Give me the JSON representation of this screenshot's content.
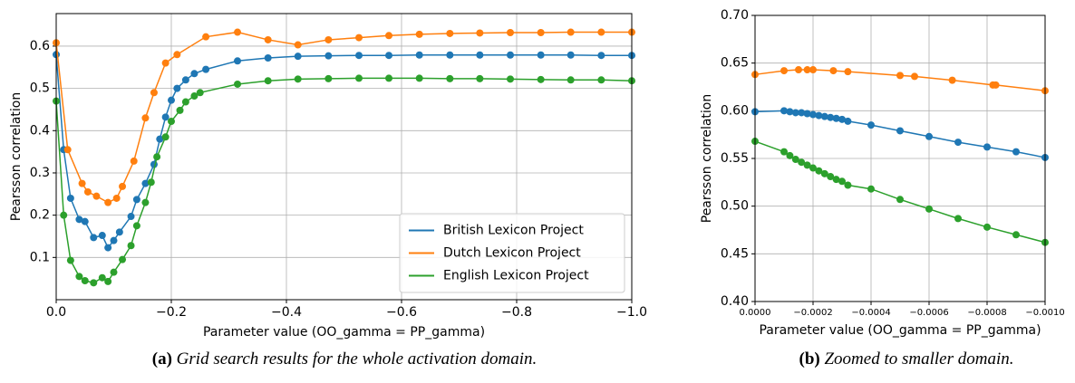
{
  "chart_data": [
    {
      "type": "line",
      "label": "(a)",
      "caption": "Grid search results for the whole activation domain.",
      "xlabel": "Parameter value (OO_gamma = PP_gamma)",
      "ylabel": "Pearsson correlation",
      "xlim": [
        0,
        -1.0
      ],
      "ylim": [
        0.0,
        0.677
      ],
      "xticks": [
        {
          "value": 0,
          "label": "0.0"
        },
        {
          "value": -0.2,
          "label": "−0.2"
        },
        {
          "value": -0.4,
          "label": "−0.4"
        },
        {
          "value": -0.6,
          "label": "−0.6"
        },
        {
          "value": -0.8,
          "label": "−0.8"
        },
        {
          "value": -1.0,
          "label": "−1.0"
        }
      ],
      "yticks": [
        0.1,
        0.2,
        0.3,
        0.4,
        0.5,
        0.6
      ],
      "grid": true,
      "legend": "lower right",
      "series": [
        {
          "name": "British Lexicon Project",
          "color": "#1f77b4",
          "x": [
            0,
            -0.013,
            -0.025,
            -0.04,
            -0.05,
            -0.065,
            -0.08,
            -0.09,
            -0.1,
            -0.11,
            -0.13,
            -0.14,
            -0.155,
            -0.17,
            -0.18,
            -0.19,
            -0.2,
            -0.21,
            -0.225,
            -0.24,
            -0.26,
            -0.315,
            -0.368,
            -0.42,
            -0.473,
            -0.526,
            -0.578,
            -0.631,
            -0.684,
            -0.736,
            -0.789,
            -0.842,
            -0.894,
            -0.947,
            -1.0
          ],
          "values": [
            0.58,
            0.355,
            0.24,
            0.19,
            0.185,
            0.147,
            0.152,
            0.123,
            0.14,
            0.16,
            0.197,
            0.237,
            0.275,
            0.32,
            0.38,
            0.432,
            0.472,
            0.5,
            0.52,
            0.535,
            0.545,
            0.565,
            0.572,
            0.576,
            0.577,
            0.578,
            0.578,
            0.579,
            0.579,
            0.579,
            0.579,
            0.579,
            0.579,
            0.578,
            0.578
          ]
        },
        {
          "name": "Dutch Lexicon Project",
          "color": "#ff7f0e",
          "x": [
            0,
            -0.02,
            -0.045,
            -0.055,
            -0.07,
            -0.09,
            -0.105,
            -0.115,
            -0.135,
            -0.155,
            -0.17,
            -0.19,
            -0.21,
            -0.26,
            -0.315,
            -0.368,
            -0.42,
            -0.473,
            -0.526,
            -0.578,
            -0.631,
            -0.684,
            -0.736,
            -0.789,
            -0.842,
            -0.894,
            -0.947,
            -1.0
          ],
          "values": [
            0.608,
            0.355,
            0.275,
            0.255,
            0.245,
            0.23,
            0.24,
            0.268,
            0.328,
            0.43,
            0.49,
            0.56,
            0.58,
            0.622,
            0.633,
            0.615,
            0.603,
            0.615,
            0.62,
            0.625,
            0.628,
            0.63,
            0.631,
            0.632,
            0.632,
            0.633,
            0.633,
            0.633
          ]
        },
        {
          "name": "English Lexicon Project",
          "color": "#2ca02c",
          "x": [
            0,
            -0.013,
            -0.025,
            -0.04,
            -0.05,
            -0.065,
            -0.08,
            -0.09,
            -0.1,
            -0.115,
            -0.13,
            -0.14,
            -0.155,
            -0.165,
            -0.175,
            -0.19,
            -0.2,
            -0.215,
            -0.225,
            -0.24,
            -0.25,
            -0.315,
            -0.368,
            -0.42,
            -0.473,
            -0.526,
            -0.578,
            -0.631,
            -0.684,
            -0.736,
            -0.789,
            -0.842,
            -0.894,
            -0.947,
            -1.0
          ],
          "values": [
            0.47,
            0.2,
            0.093,
            0.055,
            0.045,
            0.04,
            0.052,
            0.043,
            0.065,
            0.095,
            0.128,
            0.175,
            0.23,
            0.278,
            0.338,
            0.385,
            0.422,
            0.448,
            0.468,
            0.482,
            0.49,
            0.51,
            0.518,
            0.522,
            0.523,
            0.524,
            0.524,
            0.524,
            0.523,
            0.523,
            0.522,
            0.521,
            0.52,
            0.52,
            0.518
          ]
        }
      ]
    },
    {
      "type": "line",
      "label": "(b)",
      "caption": "Zoomed to smaller domain.",
      "xlabel": "Parameter value (OO_gamma = PP_gamma)",
      "ylabel": "Pearsson correlation",
      "xlim": [
        0,
        -0.001
      ],
      "ylim": [
        0.4,
        0.7
      ],
      "xticks": [
        {
          "value": 0,
          "label": "0.0000"
        },
        {
          "value": -0.0002,
          "label": "−0.0002"
        },
        {
          "value": -0.0004,
          "label": "−0.0004"
        },
        {
          "value": -0.0006,
          "label": "−0.0006"
        },
        {
          "value": -0.0008,
          "label": "−0.0008"
        },
        {
          "value": -0.001,
          "label": "−0.0010"
        }
      ],
      "yticks": [
        {
          "value": 0.4,
          "label": "0.40"
        },
        {
          "value": 0.45,
          "label": "0.45"
        },
        {
          "value": 0.5,
          "label": "0.50"
        },
        {
          "value": 0.55,
          "label": "0.55"
        },
        {
          "value": 0.6,
          "label": "0.60"
        },
        {
          "value": 0.65,
          "label": "0.65"
        },
        {
          "value": 0.7,
          "label": "0.70"
        }
      ],
      "grid": true,
      "series": [
        {
          "color": "#ff7f0e",
          "x": [
            0,
            -0.0001,
            -0.00015,
            -0.00018,
            -0.0002,
            -0.00027,
            -0.00032,
            -0.0005,
            -0.00055,
            -0.00068,
            -0.00082,
            -0.00083,
            -0.001
          ],
          "values": [
            0.638,
            0.642,
            0.643,
            0.643,
            0.643,
            0.642,
            0.641,
            0.637,
            0.636,
            0.632,
            0.627,
            0.627,
            0.621
          ]
        },
        {
          "color": "#1f77b4",
          "x": [
            0,
            -0.0001,
            -0.00012,
            -0.00014,
            -0.00016,
            -0.00018,
            -0.0002,
            -0.00022,
            -0.00024,
            -0.00026,
            -0.00028,
            -0.0003,
            -0.00032,
            -0.0004,
            -0.0005,
            -0.0006,
            -0.0007,
            -0.0008,
            -0.0009,
            -0.001
          ],
          "values": [
            0.599,
            0.6,
            0.599,
            0.598,
            0.598,
            0.597,
            0.596,
            0.595,
            0.594,
            0.593,
            0.592,
            0.591,
            0.589,
            0.585,
            0.579,
            0.573,
            0.567,
            0.562,
            0.557,
            0.551
          ]
        },
        {
          "color": "#2ca02c",
          "x": [
            0,
            -0.0001,
            -0.00012,
            -0.00014,
            -0.00016,
            -0.00018,
            -0.0002,
            -0.00022,
            -0.00024,
            -0.00026,
            -0.00028,
            -0.0003,
            -0.00032,
            -0.0004,
            -0.0005,
            -0.0006,
            -0.0007,
            -0.0008,
            -0.0009,
            -0.001
          ],
          "values": [
            0.568,
            0.557,
            0.553,
            0.549,
            0.546,
            0.543,
            0.54,
            0.537,
            0.534,
            0.531,
            0.528,
            0.526,
            0.522,
            0.518,
            0.507,
            0.497,
            0.487,
            0.478,
            0.47,
            0.462
          ]
        }
      ]
    }
  ]
}
